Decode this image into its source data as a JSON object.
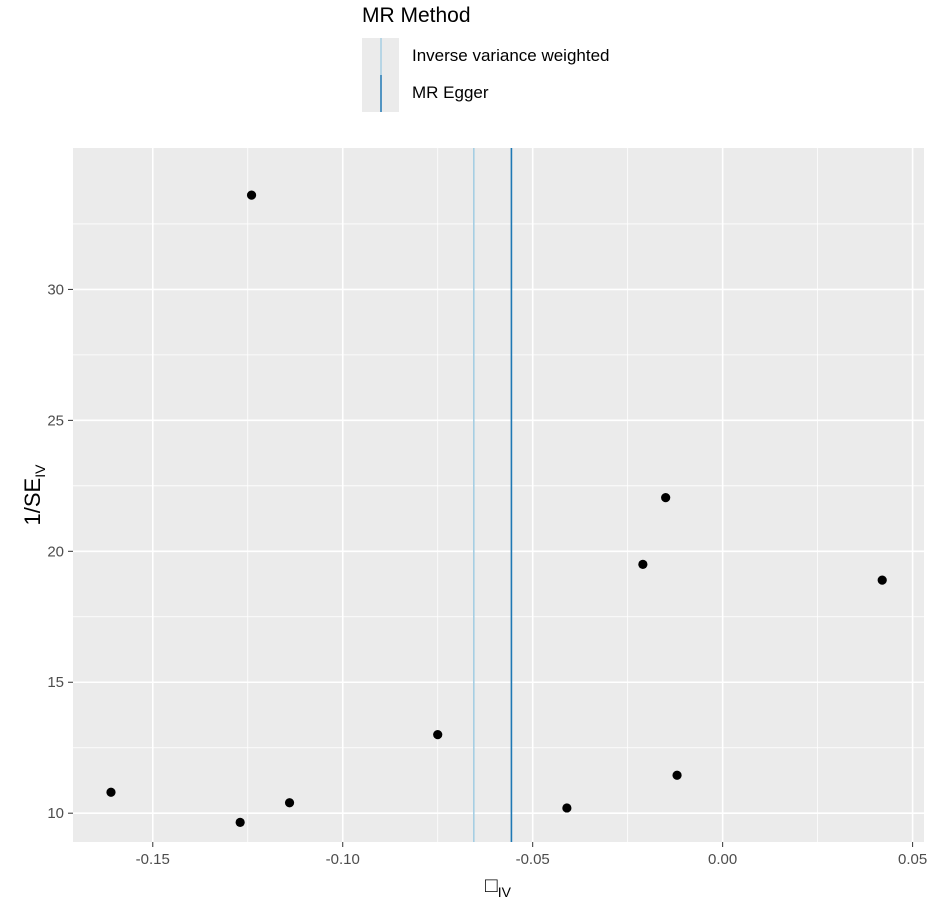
{
  "chart_data": {
    "type": "scatter",
    "title": "",
    "xlabel": "□",
    "xlabel_sub": "IV",
    "ylabel": "1/SE",
    "ylabel_sub": "IV",
    "xlim": [
      -0.171,
      0.053
    ],
    "ylim": [
      8.9,
      35.4
    ],
    "x_ticks": [
      -0.15,
      -0.1,
      -0.05,
      0.0,
      0.05
    ],
    "x_tick_labels": [
      "-0.15",
      "-0.10",
      "-0.05",
      "0.00",
      "0.05"
    ],
    "y_ticks": [
      10,
      15,
      20,
      25,
      30
    ],
    "y_tick_labels": [
      "10",
      "15",
      "20",
      "25",
      "30"
    ],
    "grid": true,
    "points": [
      {
        "x": -0.161,
        "y": 10.8
      },
      {
        "x": -0.127,
        "y": 9.65
      },
      {
        "x": -0.124,
        "y": 33.6
      },
      {
        "x": -0.114,
        "y": 10.4
      },
      {
        "x": -0.075,
        "y": 13.0
      },
      {
        "x": -0.041,
        "y": 10.2
      },
      {
        "x": -0.021,
        "y": 19.5
      },
      {
        "x": -0.015,
        "y": 22.05
      },
      {
        "x": -0.012,
        "y": 11.45
      },
      {
        "x": 0.042,
        "y": 18.9
      }
    ],
    "vlines": [
      {
        "name": "Inverse variance weighted",
        "x": -0.0655,
        "color": "#a6cee3"
      },
      {
        "name": "MR Egger",
        "x": -0.0556,
        "color": "#1f78b4"
      }
    ],
    "legend": {
      "title": "MR Method",
      "position": "top",
      "entries": [
        "Inverse variance weighted",
        "MR Egger"
      ]
    }
  }
}
